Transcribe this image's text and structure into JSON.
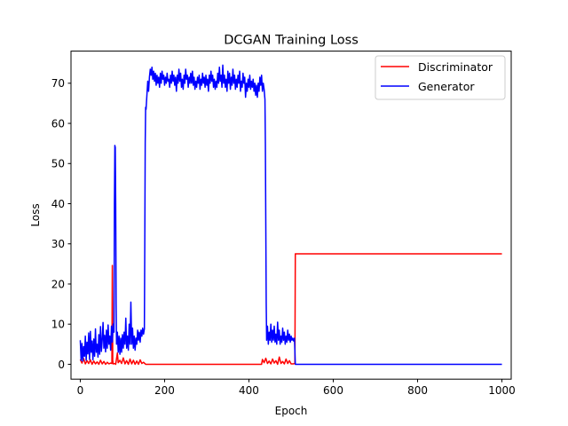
{
  "chart_data": {
    "type": "line",
    "title": "DCGAN Training Loss",
    "xlabel": "Epoch",
    "ylabel": "Loss",
    "xlim": [
      -22,
      1022
    ],
    "ylim": [
      -3.7,
      78
    ],
    "xticks": [
      0,
      200,
      400,
      600,
      800,
      1000
    ],
    "yticks": [
      0,
      10,
      20,
      30,
      40,
      50,
      60,
      70
    ],
    "grid": false,
    "legend_position": "top-right",
    "series": [
      {
        "name": "Discriminator",
        "color": "#ff0000",
        "points": [
          [
            0,
            1.2
          ],
          [
            4,
            0.3
          ],
          [
            8,
            1.4
          ],
          [
            12,
            0.1
          ],
          [
            16,
            0.9
          ],
          [
            20,
            0.2
          ],
          [
            24,
            1.1
          ],
          [
            28,
            0.0
          ],
          [
            32,
            0.8
          ],
          [
            36,
            0.1
          ],
          [
            40,
            0.6
          ],
          [
            44,
            0.0
          ],
          [
            48,
            1.0
          ],
          [
            52,
            0.1
          ],
          [
            56,
            0.7
          ],
          [
            60,
            0.0
          ],
          [
            64,
            0.5
          ],
          [
            68,
            0.1
          ],
          [
            72,
            0.3
          ],
          [
            75,
            0.2
          ],
          [
            76,
            24.6
          ],
          [
            77,
            1.0
          ],
          [
            78,
            0.1
          ],
          [
            82,
            0.2
          ],
          [
            84,
            0.0
          ],
          [
            88,
            2.8
          ],
          [
            90,
            0.4
          ],
          [
            94,
            1.0
          ],
          [
            98,
            0.2
          ],
          [
            102,
            1.6
          ],
          [
            106,
            0.1
          ],
          [
            110,
            0.9
          ],
          [
            114,
            0.0
          ],
          [
            118,
            1.3
          ],
          [
            122,
            0.1
          ],
          [
            126,
            1.0
          ],
          [
            130,
            0.0
          ],
          [
            134,
            0.8
          ],
          [
            138,
            0.0
          ],
          [
            142,
            1.1
          ],
          [
            146,
            0.2
          ],
          [
            150,
            0.5
          ],
          [
            155,
            0.0
          ],
          [
            430,
            0.0
          ],
          [
            432,
            1.2
          ],
          [
            436,
            0.4
          ],
          [
            440,
            1.5
          ],
          [
            444,
            0.2
          ],
          [
            448,
            0.8
          ],
          [
            452,
            0.1
          ],
          [
            456,
            1.3
          ],
          [
            460,
            0.3
          ],
          [
            464,
            0.9
          ],
          [
            468,
            0.0
          ],
          [
            472,
            1.8
          ],
          [
            476,
            0.2
          ],
          [
            480,
            0.7
          ],
          [
            484,
            0.1
          ],
          [
            488,
            1.3
          ],
          [
            492,
            0.2
          ],
          [
            496,
            0.9
          ],
          [
            500,
            0.1
          ],
          [
            505,
            0.1
          ],
          [
            509,
            0.2
          ],
          [
            510,
            27.5
          ],
          [
            1000,
            27.5
          ]
        ]
      },
      {
        "name": "Generator",
        "color": "#0000ff",
        "points": [
          [
            0,
            6.0
          ],
          [
            2,
            1.0
          ],
          [
            4,
            5.2
          ],
          [
            6,
            0.8
          ],
          [
            8,
            4.4
          ],
          [
            10,
            2.0
          ],
          [
            12,
            7.0
          ],
          [
            14,
            1.0
          ],
          [
            16,
            5.5
          ],
          [
            18,
            2.6
          ],
          [
            20,
            7.8
          ],
          [
            22,
            1.2
          ],
          [
            24,
            8.2
          ],
          [
            26,
            3.0
          ],
          [
            28,
            5.8
          ],
          [
            30,
            1.1
          ],
          [
            32,
            6.3
          ],
          [
            34,
            2.0
          ],
          [
            36,
            8.8
          ],
          [
            38,
            3.0
          ],
          [
            40,
            5.0
          ],
          [
            42,
            1.8
          ],
          [
            44,
            7.4
          ],
          [
            46,
            2.5
          ],
          [
            48,
            9.4
          ],
          [
            50,
            3.2
          ],
          [
            52,
            6.0
          ],
          [
            54,
            10.4
          ],
          [
            56,
            4.0
          ],
          [
            58,
            7.2
          ],
          [
            60,
            3.1
          ],
          [
            62,
            8.5
          ],
          [
            64,
            4.0
          ],
          [
            66,
            9.8
          ],
          [
            68,
            5.0
          ],
          [
            70,
            7.0
          ],
          [
            72,
            3.5
          ],
          [
            74,
            9.5
          ],
          [
            76,
            5.5
          ],
          [
            78,
            10.0
          ],
          [
            80,
            8.0
          ],
          [
            81,
            40.0
          ],
          [
            82,
            54.5
          ],
          [
            83,
            54.0
          ],
          [
            84,
            40.0
          ],
          [
            85,
            15.0
          ],
          [
            86,
            5.0
          ],
          [
            88,
            8.0
          ],
          [
            90,
            3.0
          ],
          [
            92,
            7.0
          ],
          [
            94,
            2.5
          ],
          [
            96,
            6.5
          ],
          [
            98,
            3.0
          ],
          [
            100,
            7.4
          ],
          [
            102,
            4.0
          ],
          [
            104,
            8.0
          ],
          [
            106,
            5.0
          ],
          [
            108,
            11.5
          ],
          [
            110,
            4.0
          ],
          [
            112,
            7.0
          ],
          [
            114,
            3.5
          ],
          [
            116,
            10.0
          ],
          [
            118,
            5.0
          ],
          [
            120,
            15.5
          ],
          [
            122,
            5.0
          ],
          [
            124,
            9.0
          ],
          [
            126,
            4.0
          ],
          [
            128,
            7.0
          ],
          [
            130,
            3.5
          ],
          [
            132,
            6.5
          ],
          [
            134,
            5.0
          ],
          [
            136,
            8.5
          ],
          [
            138,
            6.0
          ],
          [
            140,
            8.0
          ],
          [
            142,
            5.5
          ],
          [
            144,
            8.5
          ],
          [
            146,
            7.0
          ],
          [
            148,
            9.0
          ],
          [
            150,
            7.5
          ],
          [
            152,
            8.8
          ],
          [
            153,
            30.0
          ],
          [
            154,
            55.0
          ],
          [
            155,
            64.0
          ],
          [
            156,
            63.5
          ],
          [
            158,
            67.0
          ],
          [
            160,
            70.5
          ],
          [
            162,
            68.0
          ],
          [
            164,
            71.5
          ],
          [
            166,
            73.5
          ],
          [
            168,
            72.0
          ],
          [
            170,
            74.0
          ],
          [
            172,
            71.0
          ],
          [
            174,
            73.0
          ],
          [
            176,
            70.5
          ],
          [
            178,
            72.5
          ],
          [
            180,
            69.5
          ],
          [
            182,
            72.0
          ],
          [
            184,
            70.0
          ],
          [
            186,
            71.5
          ],
          [
            188,
            69.0
          ],
          [
            190,
            72.5
          ],
          [
            192,
            70.0
          ],
          [
            194,
            73.0
          ],
          [
            196,
            71.0
          ],
          [
            198,
            72.0
          ],
          [
            200,
            69.5
          ],
          [
            202,
            71.5
          ],
          [
            204,
            70.0
          ],
          [
            206,
            72.5
          ],
          [
            208,
            70.5
          ],
          [
            210,
            71.0
          ],
          [
            212,
            69.0
          ],
          [
            214,
            72.0
          ],
          [
            216,
            70.0
          ],
          [
            218,
            73.0
          ],
          [
            220,
            70.5
          ],
          [
            222,
            72.0
          ],
          [
            224,
            69.5
          ],
          [
            226,
            71.5
          ],
          [
            228,
            68.0
          ],
          [
            230,
            72.0
          ],
          [
            232,
            70.0
          ],
          [
            234,
            73.5
          ],
          [
            236,
            70.5
          ],
          [
            238,
            72.5
          ],
          [
            240,
            69.0
          ],
          [
            242,
            71.0
          ],
          [
            244,
            68.5
          ],
          [
            246,
            72.0
          ],
          [
            248,
            70.0
          ],
          [
            250,
            73.5
          ],
          [
            252,
            71.0
          ],
          [
            254,
            72.0
          ],
          [
            256,
            69.0
          ],
          [
            258,
            71.5
          ],
          [
            260,
            70.0
          ],
          [
            262,
            72.5
          ],
          [
            264,
            70.0
          ],
          [
            266,
            73.0
          ],
          [
            268,
            69.5
          ],
          [
            270,
            71.5
          ],
          [
            272,
            68.5
          ],
          [
            274,
            70.5
          ],
          [
            276,
            69.0
          ],
          [
            278,
            71.5
          ],
          [
            280,
            70.0
          ],
          [
            282,
            72.0
          ],
          [
            284,
            68.5
          ],
          [
            286,
            71.0
          ],
          [
            288,
            69.5
          ],
          [
            290,
            72.5
          ],
          [
            292,
            70.0
          ],
          [
            294,
            71.5
          ],
          [
            296,
            69.0
          ],
          [
            298,
            72.0
          ],
          [
            300,
            69.5
          ],
          [
            302,
            71.0
          ],
          [
            304,
            68.0
          ],
          [
            306,
            72.0
          ],
          [
            308,
            70.0
          ],
          [
            310,
            73.0
          ],
          [
            312,
            70.5
          ],
          [
            314,
            72.0
          ],
          [
            316,
            69.0
          ],
          [
            318,
            71.0
          ],
          [
            320,
            68.5
          ],
          [
            322,
            70.5
          ],
          [
            324,
            69.0
          ],
          [
            326,
            72.5
          ],
          [
            328,
            70.0
          ],
          [
            330,
            74.0
          ],
          [
            332,
            70.5
          ],
          [
            334,
            72.0
          ],
          [
            336,
            69.0
          ],
          [
            338,
            74.5
          ],
          [
            340,
            70.0
          ],
          [
            342,
            72.0
          ],
          [
            344,
            69.0
          ],
          [
            346,
            71.0
          ],
          [
            348,
            68.0
          ],
          [
            350,
            73.0
          ],
          [
            352,
            70.0
          ],
          [
            354,
            72.5
          ],
          [
            356,
            68.5
          ],
          [
            358,
            71.5
          ],
          [
            360,
            69.5
          ],
          [
            362,
            73.5
          ],
          [
            364,
            70.0
          ],
          [
            366,
            72.0
          ],
          [
            368,
            68.5
          ],
          [
            370,
            71.0
          ],
          [
            372,
            69.0
          ],
          [
            374,
            72.0
          ],
          [
            376,
            70.0
          ],
          [
            378,
            73.0
          ],
          [
            380,
            68.0
          ],
          [
            382,
            70.5
          ],
          [
            384,
            69.0
          ],
          [
            386,
            72.5
          ],
          [
            388,
            70.0
          ],
          [
            390,
            71.5
          ],
          [
            392,
            66.5
          ],
          [
            394,
            70.0
          ],
          [
            396,
            68.0
          ],
          [
            398,
            71.0
          ],
          [
            400,
            69.0
          ],
          [
            402,
            72.0
          ],
          [
            404,
            68.5
          ],
          [
            406,
            70.5
          ],
          [
            408,
            69.0
          ],
          [
            410,
            71.0
          ],
          [
            412,
            68.0
          ],
          [
            414,
            70.0
          ],
          [
            416,
            67.0
          ],
          [
            418,
            69.5
          ],
          [
            420,
            66.5
          ],
          [
            422,
            70.0
          ],
          [
            424,
            68.0
          ],
          [
            426,
            71.5
          ],
          [
            428,
            69.5
          ],
          [
            430,
            72.0
          ],
          [
            432,
            68.0
          ],
          [
            434,
            70.0
          ],
          [
            436,
            68.5
          ],
          [
            438,
            66.0
          ],
          [
            439,
            55.0
          ],
          [
            440,
            35.0
          ],
          [
            441,
            15.0
          ],
          [
            442,
            6.0
          ],
          [
            444,
            9.5
          ],
          [
            446,
            5.0
          ],
          [
            448,
            8.0
          ],
          [
            450,
            6.0
          ],
          [
            452,
            10.0
          ],
          [
            454,
            5.5
          ],
          [
            456,
            8.5
          ],
          [
            458,
            6.0
          ],
          [
            460,
            9.5
          ],
          [
            462,
            5.5
          ],
          [
            464,
            7.5
          ],
          [
            466,
            5.0
          ],
          [
            468,
            10.5
          ],
          [
            470,
            6.0
          ],
          [
            472,
            8.5
          ],
          [
            474,
            5.0
          ],
          [
            476,
            7.0
          ],
          [
            478,
            5.5
          ],
          [
            480,
            9.0
          ],
          [
            482,
            6.0
          ],
          [
            484,
            8.0
          ],
          [
            486,
            5.0
          ],
          [
            488,
            7.0
          ],
          [
            490,
            5.5
          ],
          [
            492,
            8.5
          ],
          [
            494,
            6.0
          ],
          [
            496,
            7.5
          ],
          [
            498,
            5.5
          ],
          [
            500,
            7.0
          ],
          [
            502,
            6.0
          ],
          [
            504,
            6.5
          ],
          [
            506,
            5.8
          ],
          [
            508,
            6.5
          ],
          [
            510,
            0.0
          ],
          [
            1000,
            0.0
          ]
        ]
      }
    ]
  }
}
